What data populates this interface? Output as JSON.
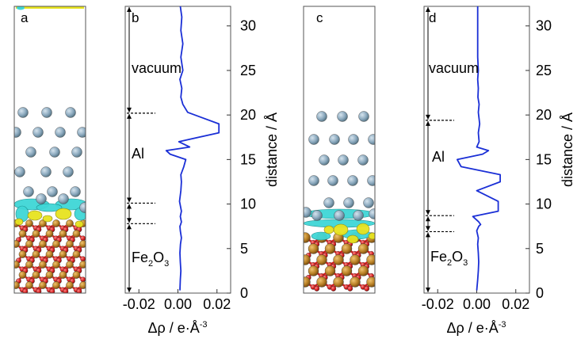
{
  "figure": {
    "panels": [
      {
        "letter": "a"
      },
      {
        "letter": "b"
      },
      {
        "letter": "c"
      },
      {
        "letter": "d"
      }
    ],
    "regions": {
      "vacuum": "vacuum",
      "al": "Al",
      "fe_base": "Fe",
      "fe_sub2": "2",
      "fe_o": "O",
      "fe_sub3": "3"
    },
    "axis": {
      "xlabel_main": "Δρ / e·Å",
      "xlabel_sup": "-3",
      "ylabel": "distance / Å",
      "xticks": [
        "-0.02",
        "0.00",
        "0.02"
      ],
      "yticks": [
        "0",
        "5",
        "10",
        "15",
        "20",
        "25",
        "30"
      ]
    },
    "colors": {
      "al_atom": "#8aa8bd",
      "fe_atom": "#b87f24",
      "o_atom": "#d81d1d",
      "isosurface_cyan": "#3fd6d6",
      "isosurface_yellow": "#e7e31f",
      "curve": "#1a2fd6"
    }
  },
  "chart_data": [
    {
      "type": "line",
      "panel": "b",
      "xlabel": "Δρ / e·Å⁻³",
      "ylabel": "distance / Å",
      "xlim": [
        -0.027,
        0.027
      ],
      "ylim": [
        0,
        32.2
      ],
      "xticks": [
        -0.02,
        0.0,
        0.02
      ],
      "yticks": [
        0,
        5,
        10,
        15,
        20,
        25,
        30
      ],
      "boundaries": [
        7.8,
        10.1,
        20.2
      ],
      "series": [
        {
          "x": [
            0.001,
            0.0012,
            0.0015,
            0.0012,
            0.001,
            0.0013,
            0.0018,
            0.0012,
            0.001,
            0.0014,
            0.0018,
            0.0012,
            0.0018,
            0.0008,
            0.0015,
            0.0018,
            0.0015,
            0.003,
            0.004,
            -0.004,
            -0.006,
            0.006,
            0.0005,
            0.021,
            0.021,
            0.005,
            0.0025,
            0.0015,
            0.002,
            0.001,
            0.0025,
            0.0015,
            0.0025,
            0.0015,
            0.002,
            0.0012
          ],
          "y": [
            0.3,
            1.5,
            2.5,
            3.5,
            4.5,
            5.5,
            6.2,
            7.0,
            7.5,
            7.7,
            8.0,
            8.6,
            9.2,
            10.3,
            11.5,
            12.5,
            13.3,
            14.2,
            15.0,
            15.6,
            16.0,
            16.4,
            17.0,
            18.0,
            19.0,
            20.3,
            21.2,
            22.0,
            23.0,
            24.0,
            25.0,
            26.5,
            28.0,
            29.5,
            31.0,
            32.2
          ]
        }
      ]
    },
    {
      "type": "line",
      "panel": "d",
      "xlabel": "Δρ / e·Å⁻³",
      "ylabel": "distance / Å",
      "xlim": [
        -0.027,
        0.027
      ],
      "ylim": [
        0,
        32.2
      ],
      "xticks": [
        -0.02,
        0.0,
        0.02
      ],
      "yticks": [
        0,
        5,
        10,
        15,
        20,
        25,
        30
      ],
      "boundaries": [
        6.9,
        8.7,
        19.4
      ],
      "series": [
        {
          "x": [
            0.0,
            0.0005,
            0.0008,
            0.001,
            0.0008,
            0.0005,
            0.0008,
            0.0,
            0.001,
            0.002,
            0.001,
            -0.002,
            0.011,
            0.011,
            0.0,
            0.012,
            0.012,
            -0.008,
            -0.01,
            0.003,
            0.006,
            0.0,
            0.0012,
            0.0008,
            0.0015,
            0.0008,
            0.0012,
            0.0006,
            0.0008,
            0.0005,
            0.0008,
            0.0005,
            0.0005,
            0.0005,
            0.0005
          ],
          "y": [
            0.3,
            1.5,
            2.5,
            3.5,
            4.5,
            5.5,
            6.2,
            7.0,
            7.5,
            7.7,
            8.0,
            8.6,
            9.2,
            10.3,
            11.5,
            12.5,
            13.3,
            14.2,
            15.0,
            15.6,
            16.0,
            16.4,
            17.0,
            18.0,
            19.0,
            20.3,
            21.2,
            22.0,
            23.0,
            24.0,
            25.0,
            26.5,
            28.0,
            29.5,
            32.2
          ]
        }
      ]
    }
  ]
}
